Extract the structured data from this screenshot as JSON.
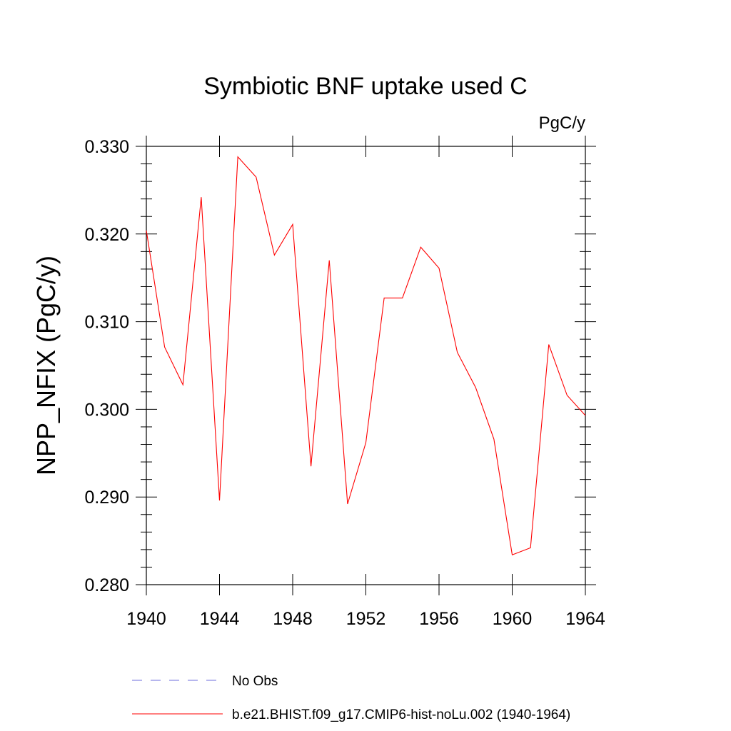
{
  "chart_data": {
    "type": "line",
    "title": "Symbiotic BNF uptake used C",
    "units": "PgC/y",
    "xlabel": "",
    "ylabel": "NPP_NFIX  (PgC/y)",
    "xlim": [
      1940,
      1964
    ],
    "ylim": [
      0.28,
      0.33
    ],
    "grid": false,
    "legend_position": "bottom",
    "x_ticks": [
      1940,
      1944,
      1948,
      1952,
      1956,
      1960,
      1964
    ],
    "x_tick_labels": [
      "1940",
      "1944",
      "1948",
      "1952",
      "1956",
      "1960",
      "1964"
    ],
    "y_ticks": [
      0.28,
      0.29,
      0.3,
      0.31,
      0.32,
      0.33
    ],
    "y_tick_labels": [
      "0.280",
      "0.290",
      "0.300",
      "0.310",
      "0.320",
      "0.330"
    ],
    "x": [
      1940,
      1941,
      1942,
      1943,
      1944,
      1945,
      1946,
      1947,
      1948,
      1949,
      1950,
      1951,
      1952,
      1953,
      1954,
      1955,
      1956,
      1957,
      1958,
      1959,
      1960,
      1961,
      1962,
      1963,
      1964
    ],
    "series": [
      {
        "name": "b.e21.BHIST.f09_g17.CMIP6-hist-noLu.002 (1940-1964)",
        "color": "#ff0000",
        "style": "solid",
        "values": [
          0.3204,
          0.3071,
          0.3028,
          0.3242,
          0.2896,
          0.3288,
          0.3265,
          0.3176,
          0.3211,
          0.2935,
          0.317,
          0.2892,
          0.2962,
          0.3127,
          0.3127,
          0.3185,
          0.3161,
          0.3065,
          0.3025,
          0.2966,
          0.2834,
          0.2842,
          0.3074,
          0.3016,
          0.2993
        ]
      }
    ],
    "legend": [
      {
        "label": "No Obs",
        "color": "#6e6edc",
        "style": "dashed"
      },
      {
        "label": "b.e21.BHIST.f09_g17.CMIP6-hist-noLu.002 (1940-1964)",
        "color": "#ff0000",
        "style": "solid"
      }
    ]
  }
}
